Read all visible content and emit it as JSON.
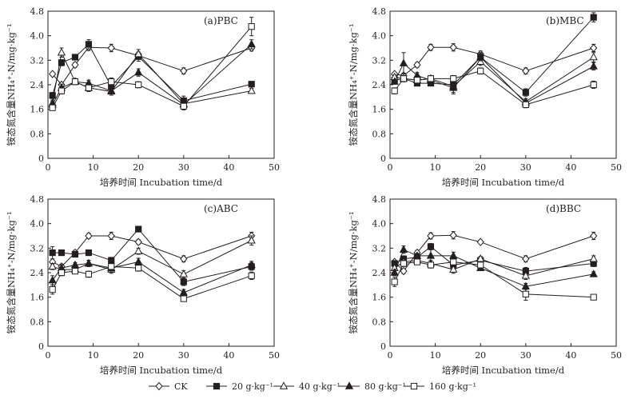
{
  "legend": [
    {
      "name": "CK",
      "marker": "diamond-open"
    },
    {
      "name": "20 g·kg⁻¹",
      "marker": "square-filled"
    },
    {
      "name": "40 g·kg⁻¹",
      "marker": "triangle-open"
    },
    {
      "name": "80 g·kg⁻¹",
      "marker": "triangle-filled"
    },
    {
      "name": "160 g·kg⁻¹",
      "marker": "square-open"
    }
  ],
  "chart_data": [
    {
      "type": "line",
      "title": "(a)PBC",
      "xlabel": "培养时间 Incubation time/d",
      "ylabel": "铵态氮含量NH₄⁺-N/mg·kg⁻¹",
      "xlim": [
        0,
        50
      ],
      "ylim": [
        0,
        4.8
      ],
      "xticks": [
        "0",
        "10",
        "20",
        "30",
        "40",
        "50"
      ],
      "yticks": [
        "0",
        "0.8",
        "1.6",
        "2.4",
        "3.2",
        "4.0",
        "4.8"
      ],
      "x": [
        1,
        3,
        6,
        9,
        14,
        20,
        30,
        45
      ],
      "series": [
        {
          "name": "CK",
          "values": [
            2.75,
            2.4,
            3.05,
            3.62,
            3.6,
            3.35,
            2.85,
            3.6
          ],
          "errors": [
            0.05,
            0.08,
            0.08,
            0.1,
            0.12,
            0.1,
            0.1,
            0.1
          ]
        },
        {
          "name": "20 g·kg⁻¹",
          "values": [
            2.05,
            3.12,
            3.3,
            3.72,
            2.35,
            3.32,
            1.88,
            2.42
          ],
          "errors": [
            0.1,
            0.1,
            0.06,
            0.15,
            0.15,
            0.15,
            0.15,
            0.06
          ]
        },
        {
          "name": "40 g·kg⁻¹",
          "values": [
            1.8,
            3.45,
            2.5,
            2.3,
            2.18,
            3.4,
            1.78,
            2.2
          ],
          "errors": [
            0.1,
            0.15,
            0.1,
            0.1,
            0.12,
            0.15,
            0.15,
            0.08
          ]
        },
        {
          "name": "80 g·kg⁻¹",
          "values": [
            1.75,
            2.3,
            2.5,
            2.45,
            2.2,
            2.8,
            1.75,
            3.72
          ],
          "errors": [
            0.1,
            0.12,
            0.1,
            0.1,
            0.1,
            0.12,
            0.12,
            0.15
          ]
        },
        {
          "name": "160 g·kg⁻¹",
          "values": [
            1.65,
            2.2,
            2.5,
            2.3,
            2.5,
            2.4,
            1.7,
            4.3
          ],
          "errors": [
            0.06,
            0.1,
            0.1,
            0.12,
            0.12,
            0.1,
            0.12,
            0.3
          ]
        }
      ]
    },
    {
      "type": "line",
      "title": "(b)MBC",
      "xlabel": "培养时间 Incubation time/d",
      "ylabel": "铵态氮含量NH₄⁺-N/mg·kg⁻¹",
      "xlim": [
        0,
        50
      ],
      "ylim": [
        0,
        4.8
      ],
      "xticks": [
        "0",
        "10",
        "20",
        "30",
        "40",
        "50"
      ],
      "yticks": [
        "0",
        "0.8",
        "1.6",
        "2.4",
        "3.2",
        "4.0",
        "4.8"
      ],
      "x": [
        1,
        3,
        6,
        9,
        14,
        20,
        30,
        45
      ],
      "series": [
        {
          "name": "CK",
          "values": [
            2.75,
            2.7,
            3.05,
            3.62,
            3.62,
            3.4,
            2.85,
            3.6
          ],
          "errors": [
            0.05,
            0.08,
            0.08,
            0.1,
            0.12,
            0.1,
            0.1,
            0.12
          ]
        },
        {
          "name": "20 g·kg⁻¹",
          "values": [
            2.55,
            2.6,
            2.45,
            2.45,
            2.4,
            3.3,
            2.15,
            4.6
          ],
          "errors": [
            0.06,
            0.1,
            0.06,
            0.06,
            0.1,
            0.15,
            0.12,
            0.15
          ]
        },
        {
          "name": "40 g·kg⁻¹",
          "values": [
            2.65,
            2.6,
            2.55,
            2.6,
            2.35,
            3.15,
            1.85,
            3.3
          ],
          "errors": [
            0.06,
            0.1,
            0.08,
            0.1,
            0.25,
            0.12,
            0.1,
            0.15
          ]
        },
        {
          "name": "80 g·kg⁻¹",
          "values": [
            2.5,
            3.1,
            2.7,
            2.55,
            2.3,
            3.3,
            1.8,
            3.0
          ],
          "errors": [
            0.06,
            0.35,
            0.1,
            0.08,
            0.15,
            0.12,
            0.1,
            0.12
          ]
        },
        {
          "name": "160 g·kg⁻¹",
          "values": [
            2.2,
            2.6,
            2.55,
            2.6,
            2.6,
            2.85,
            1.75,
            2.4
          ],
          "errors": [
            0.1,
            0.1,
            0.08,
            0.1,
            0.1,
            0.1,
            0.1,
            0.12
          ]
        }
      ]
    },
    {
      "type": "line",
      "title": "(c)ABC",
      "xlabel": "培养时间 Incubation time/d",
      "ylabel": "铵态氮含量NH₄⁺-N/mg·kg⁻¹",
      "xlim": [
        0,
        50
      ],
      "ylim": [
        0,
        4.8
      ],
      "xticks": [
        "0",
        "10",
        "20",
        "30",
        "40",
        "50"
      ],
      "yticks": [
        "0",
        "0.8",
        "1.6",
        "2.4",
        "3.2",
        "4.0",
        "4.8"
      ],
      "x": [
        1,
        3,
        6,
        9,
        14,
        20,
        30,
        45
      ],
      "series": [
        {
          "name": "CK",
          "values": [
            2.75,
            2.6,
            3.05,
            3.6,
            3.6,
            3.4,
            2.85,
            3.6
          ],
          "errors": [
            0.05,
            0.08,
            0.08,
            0.08,
            0.12,
            0.08,
            0.1,
            0.12
          ]
        },
        {
          "name": "20 g·kg⁻¹",
          "values": [
            3.05,
            3.05,
            3.0,
            3.05,
            2.8,
            3.82,
            2.1,
            2.6
          ],
          "errors": [
            0.2,
            0.08,
            0.06,
            0.06,
            0.1,
            0.06,
            0.12,
            0.12
          ]
        },
        {
          "name": "40 g·kg⁻¹",
          "values": [
            2.6,
            2.5,
            2.5,
            2.7,
            2.5,
            3.1,
            2.35,
            3.45
          ],
          "errors": [
            0.1,
            0.08,
            0.08,
            0.1,
            0.12,
            0.1,
            0.12,
            0.15
          ]
        },
        {
          "name": "80 g·kg⁻¹",
          "values": [
            2.15,
            2.55,
            2.65,
            2.7,
            2.55,
            2.75,
            1.75,
            2.65
          ],
          "errors": [
            0.15,
            0.1,
            0.08,
            0.1,
            0.1,
            0.12,
            0.1,
            0.12
          ]
        },
        {
          "name": "160 g·kg⁻¹",
          "values": [
            1.85,
            2.4,
            2.45,
            2.35,
            2.6,
            2.55,
            1.55,
            2.3
          ],
          "errors": [
            0.15,
            0.1,
            0.08,
            0.1,
            0.1,
            0.1,
            0.08,
            0.12
          ]
        }
      ]
    },
    {
      "type": "line",
      "title": "(d)BBC",
      "xlabel": "培养时间 Incubation time/d",
      "ylabel": "铵态氮含量NH₄⁺-N/mg·kg⁻¹",
      "xlim": [
        0,
        50
      ],
      "ylim": [
        0,
        4.8
      ],
      "xticks": [
        "0",
        "10",
        "20",
        "30",
        "40",
        "50"
      ],
      "yticks": [
        "0",
        "0.8",
        "1.6",
        "2.4",
        "3.2",
        "4.0",
        "4.8"
      ],
      "x": [
        1,
        3,
        6,
        9,
        14,
        20,
        30,
        45
      ],
      "series": [
        {
          "name": "CK",
          "values": [
            2.75,
            2.45,
            3.05,
            3.6,
            3.62,
            3.4,
            2.85,
            3.6
          ],
          "errors": [
            0.05,
            0.08,
            0.08,
            0.1,
            0.12,
            0.06,
            0.1,
            0.12
          ]
        },
        {
          "name": "20 g·kg⁻¹",
          "values": [
            2.7,
            2.85,
            2.9,
            3.25,
            2.65,
            2.8,
            2.45,
            2.7
          ],
          "errors": [
            0.08,
            0.1,
            0.08,
            0.1,
            0.12,
            0.08,
            0.12,
            0.1
          ]
        },
        {
          "name": "40 g·kg⁻¹",
          "values": [
            2.55,
            2.75,
            2.8,
            2.7,
            2.5,
            2.85,
            2.3,
            2.85
          ],
          "errors": [
            0.08,
            0.08,
            0.08,
            0.1,
            0.12,
            0.08,
            0.12,
            0.1
          ]
        },
        {
          "name": "80 g·kg⁻¹",
          "values": [
            2.4,
            3.15,
            2.95,
            2.95,
            2.95,
            2.55,
            1.95,
            2.35
          ],
          "errors": [
            0.1,
            0.12,
            0.08,
            0.2,
            0.12,
            0.08,
            0.1,
            0.08
          ]
        },
        {
          "name": "160 g·kg⁻¹",
          "values": [
            2.1,
            2.7,
            2.75,
            2.65,
            2.75,
            2.65,
            1.7,
            1.6
          ],
          "errors": [
            0.15,
            0.1,
            0.08,
            0.1,
            0.12,
            0.08,
            0.2,
            0.08
          ]
        }
      ]
    }
  ]
}
